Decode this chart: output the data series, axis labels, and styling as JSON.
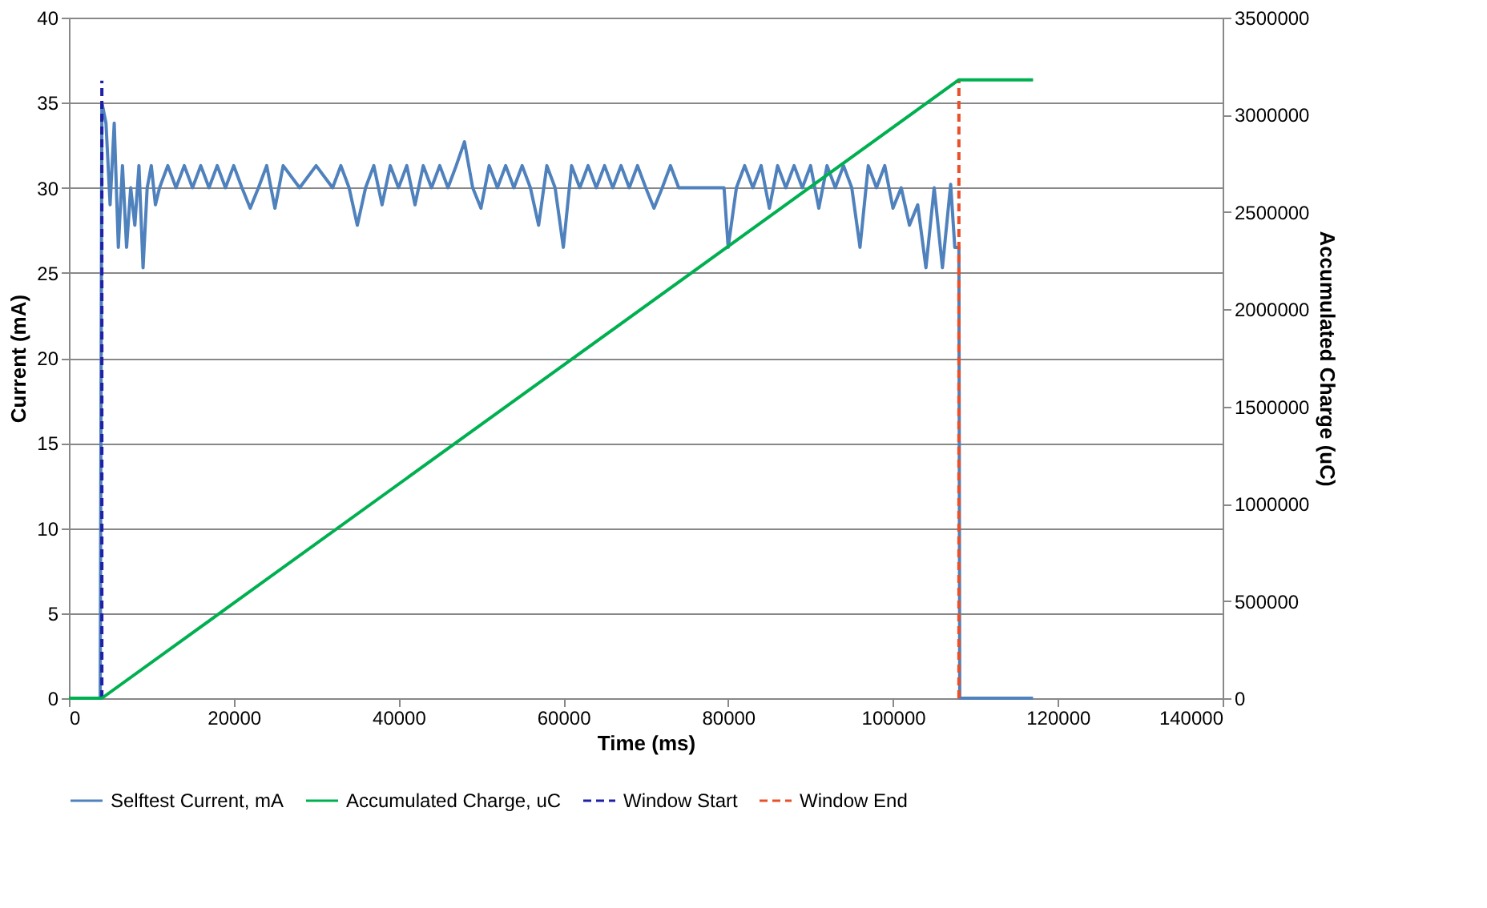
{
  "chart_data": {
    "type": "line",
    "xlabel": "Time (ms)",
    "ylabel": "Current (mA)",
    "y2label": "Accumulated Charge (uC)",
    "xlim": [
      0,
      140000
    ],
    "xticks": [
      0,
      20000,
      40000,
      60000,
      80000,
      100000,
      120000,
      140000
    ],
    "ylim": [
      0,
      40
    ],
    "yticks": [
      0,
      5,
      10,
      15,
      20,
      25,
      30,
      35,
      40
    ],
    "y2lim": [
      0,
      3500000
    ],
    "y2ticks": [
      0,
      500000,
      1000000,
      1500000,
      2000000,
      2500000,
      3000000,
      3500000
    ],
    "grid": "y",
    "legend": "bottom",
    "series": [
      {
        "name": "Selftest Current, mA",
        "color": "#4f81bd",
        "line_style": "solid",
        "x": [
          0,
          3800,
          4000,
          4500,
          5000,
          5500,
          6000,
          6500,
          7000,
          7500,
          8000,
          8500,
          9000,
          9500,
          10000,
          10500,
          11000,
          12000,
          13000,
          14000,
          15000,
          16000,
          17000,
          18000,
          19000,
          20000,
          21000,
          22000,
          23000,
          24000,
          25000,
          26000,
          28000,
          30000,
          32000,
          33000,
          34000,
          35000,
          36000,
          37000,
          38000,
          39000,
          40000,
          41000,
          42000,
          43000,
          44000,
          45000,
          46000,
          47000,
          48000,
          49000,
          50000,
          51000,
          52000,
          53000,
          54000,
          55000,
          56000,
          57000,
          58000,
          59000,
          60000,
          61000,
          62000,
          63000,
          64000,
          65000,
          66000,
          67000,
          68000,
          69000,
          70000,
          71000,
          72000,
          73000,
          74000,
          79500,
          80000,
          81000,
          82000,
          83000,
          84000,
          85000,
          86000,
          87000,
          88000,
          89000,
          90000,
          91000,
          92000,
          93000,
          94000,
          95000,
          96000,
          97000,
          98000,
          99000,
          100000,
          101000,
          102000,
          103000,
          104000,
          105000,
          106000,
          107000,
          107500,
          108000,
          108100,
          117000
        ],
        "values": [
          0,
          0,
          35,
          33.8,
          29,
          33.8,
          26.5,
          31.3,
          26.5,
          30,
          27.8,
          31.3,
          25.3,
          30,
          31.3,
          29,
          30,
          31.3,
          30,
          31.3,
          30,
          31.3,
          30,
          31.3,
          30,
          31.3,
          30,
          28.8,
          30,
          31.3,
          28.8,
          31.3,
          30,
          31.3,
          30,
          31.3,
          30,
          27.8,
          30,
          31.3,
          29,
          31.3,
          30,
          31.3,
          29,
          31.3,
          30,
          31.3,
          30,
          31.3,
          32.7,
          30,
          28.8,
          31.3,
          30,
          31.3,
          30,
          31.3,
          30,
          27.8,
          31.3,
          30,
          26.5,
          31.3,
          30,
          31.3,
          30,
          31.3,
          30,
          31.3,
          30,
          31.3,
          30,
          28.8,
          30,
          31.3,
          30,
          30,
          26.5,
          30,
          31.3,
          30,
          31.3,
          28.8,
          31.3,
          30,
          31.3,
          30,
          31.3,
          28.8,
          31.3,
          30,
          31.3,
          30,
          26.5,
          31.3,
          30,
          31.3,
          28.8,
          30,
          27.8,
          29,
          25.3,
          30,
          25.3,
          30.2,
          26.5,
          26.5,
          0,
          0
        ]
      },
      {
        "name": "Accumulated Charge, uC",
        "color": "#00b050",
        "line_style": "solid",
        "axis": "y2",
        "x": [
          0,
          4000,
          108000,
          117000
        ],
        "values": [
          0,
          0,
          3180000,
          3180000
        ]
      },
      {
        "name": "Window Start",
        "color": "#1f1fa8",
        "line_style": "dashed",
        "x": [
          4000,
          4000
        ],
        "values": [
          0,
          36.3
        ]
      },
      {
        "name": "Window End",
        "color": "#e8502a",
        "line_style": "dashed",
        "x": [
          108000,
          108000
        ],
        "values": [
          0,
          36.3
        ]
      }
    ]
  }
}
